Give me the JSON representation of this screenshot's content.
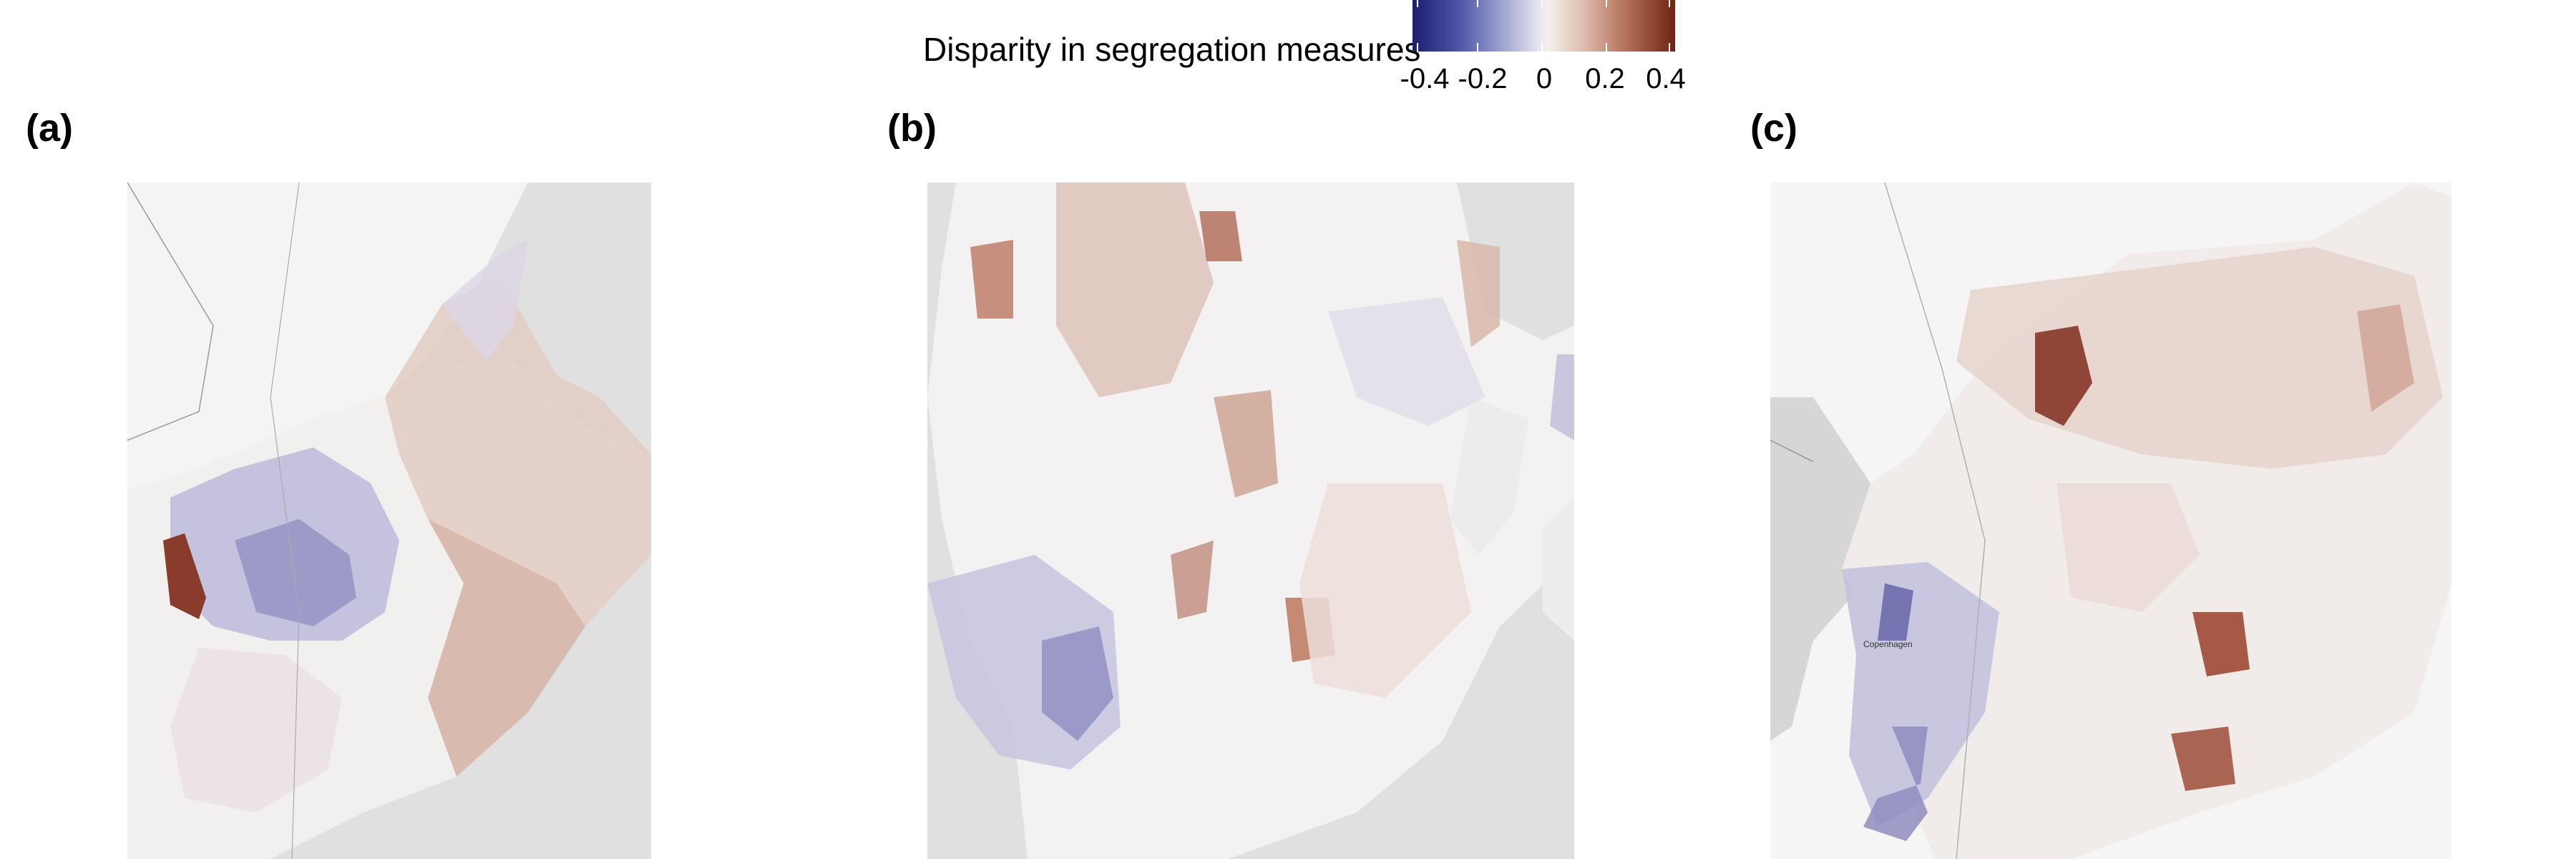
{
  "legend": {
    "title": "Disparity in segregation measures",
    "ticks": [
      "-0.4",
      "-0.2",
      "0",
      "0.2",
      "0.4"
    ],
    "range": [
      -0.4,
      0.4
    ],
    "colors": {
      "low": "#1a1f6e",
      "mid": "#f0eeee",
      "high": "#6e2412"
    }
  },
  "panels": [
    {
      "label": "(a)",
      "place_labels": []
    },
    {
      "label": "(b)",
      "place_labels": []
    },
    {
      "label": "(c)",
      "place_labels": [
        "Copenhagen"
      ]
    }
  ]
}
